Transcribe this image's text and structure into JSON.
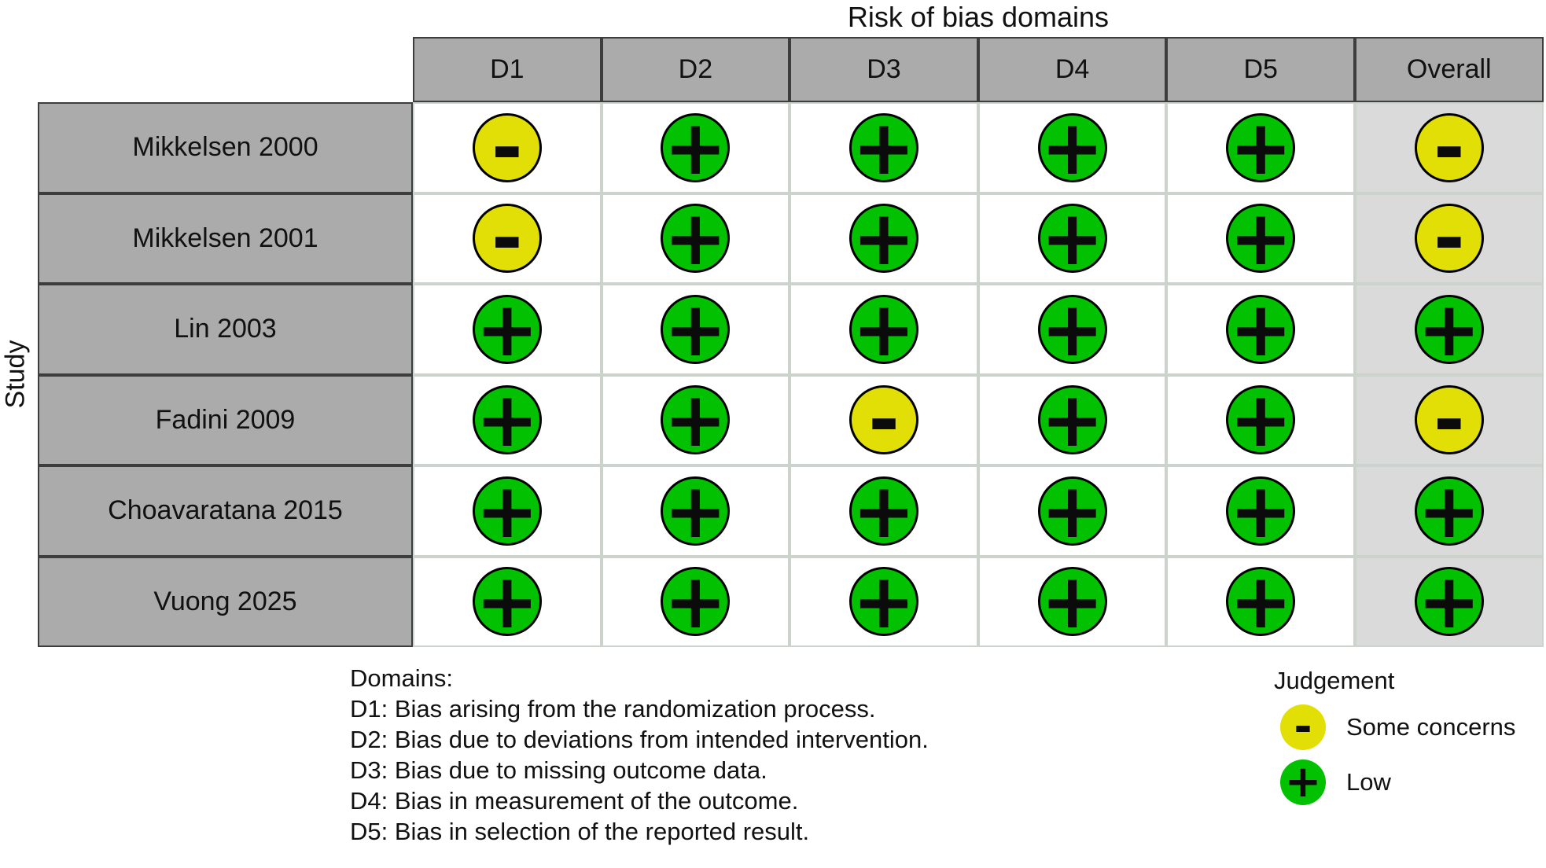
{
  "chart_data": {
    "type": "heatmap",
    "title": "Risk of bias domains",
    "y_axis_label": "Study",
    "columns": [
      "D1",
      "D2",
      "D3",
      "D4",
      "D5",
      "Overall"
    ],
    "studies": [
      "Mikkelsen 2000",
      "Mikkelsen 2001",
      "Lin 2003",
      "Fadini 2009",
      "Choavaratana 2015",
      "Vuong 2025"
    ],
    "judgements": [
      [
        "some_concerns",
        "low",
        "low",
        "low",
        "low",
        "some_concerns"
      ],
      [
        "some_concerns",
        "low",
        "low",
        "low",
        "low",
        "some_concerns"
      ],
      [
        "low",
        "low",
        "low",
        "low",
        "low",
        "low"
      ],
      [
        "low",
        "low",
        "some_concerns",
        "low",
        "low",
        "some_concerns"
      ],
      [
        "low",
        "low",
        "low",
        "low",
        "low",
        "low"
      ],
      [
        "low",
        "low",
        "low",
        "low",
        "low",
        "low"
      ]
    ],
    "symbols": {
      "low": "+",
      "some_concerns": "-"
    },
    "legend_title": "Judgement",
    "legend": [
      {
        "value": "some_concerns",
        "symbol": "-",
        "label": "Some concerns"
      },
      {
        "value": "low",
        "symbol": "+",
        "label": "Low"
      }
    ]
  },
  "footnote": {
    "heading": "Domains:",
    "lines": [
      "D1: Bias arising from the randomization process.",
      "D2: Bias due to deviations from intended intervention.",
      "D3: Bias due to missing outcome data.",
      "D4: Bias in measurement of the outcome.",
      "D5: Bias in selection of the reported result."
    ]
  },
  "colors": {
    "low": "#02C100",
    "some_concerns": "#E2DF07",
    "header_bg": "#ABABAB",
    "overall_bg": "#DADADA",
    "grid_line": "#CCD2CC"
  }
}
